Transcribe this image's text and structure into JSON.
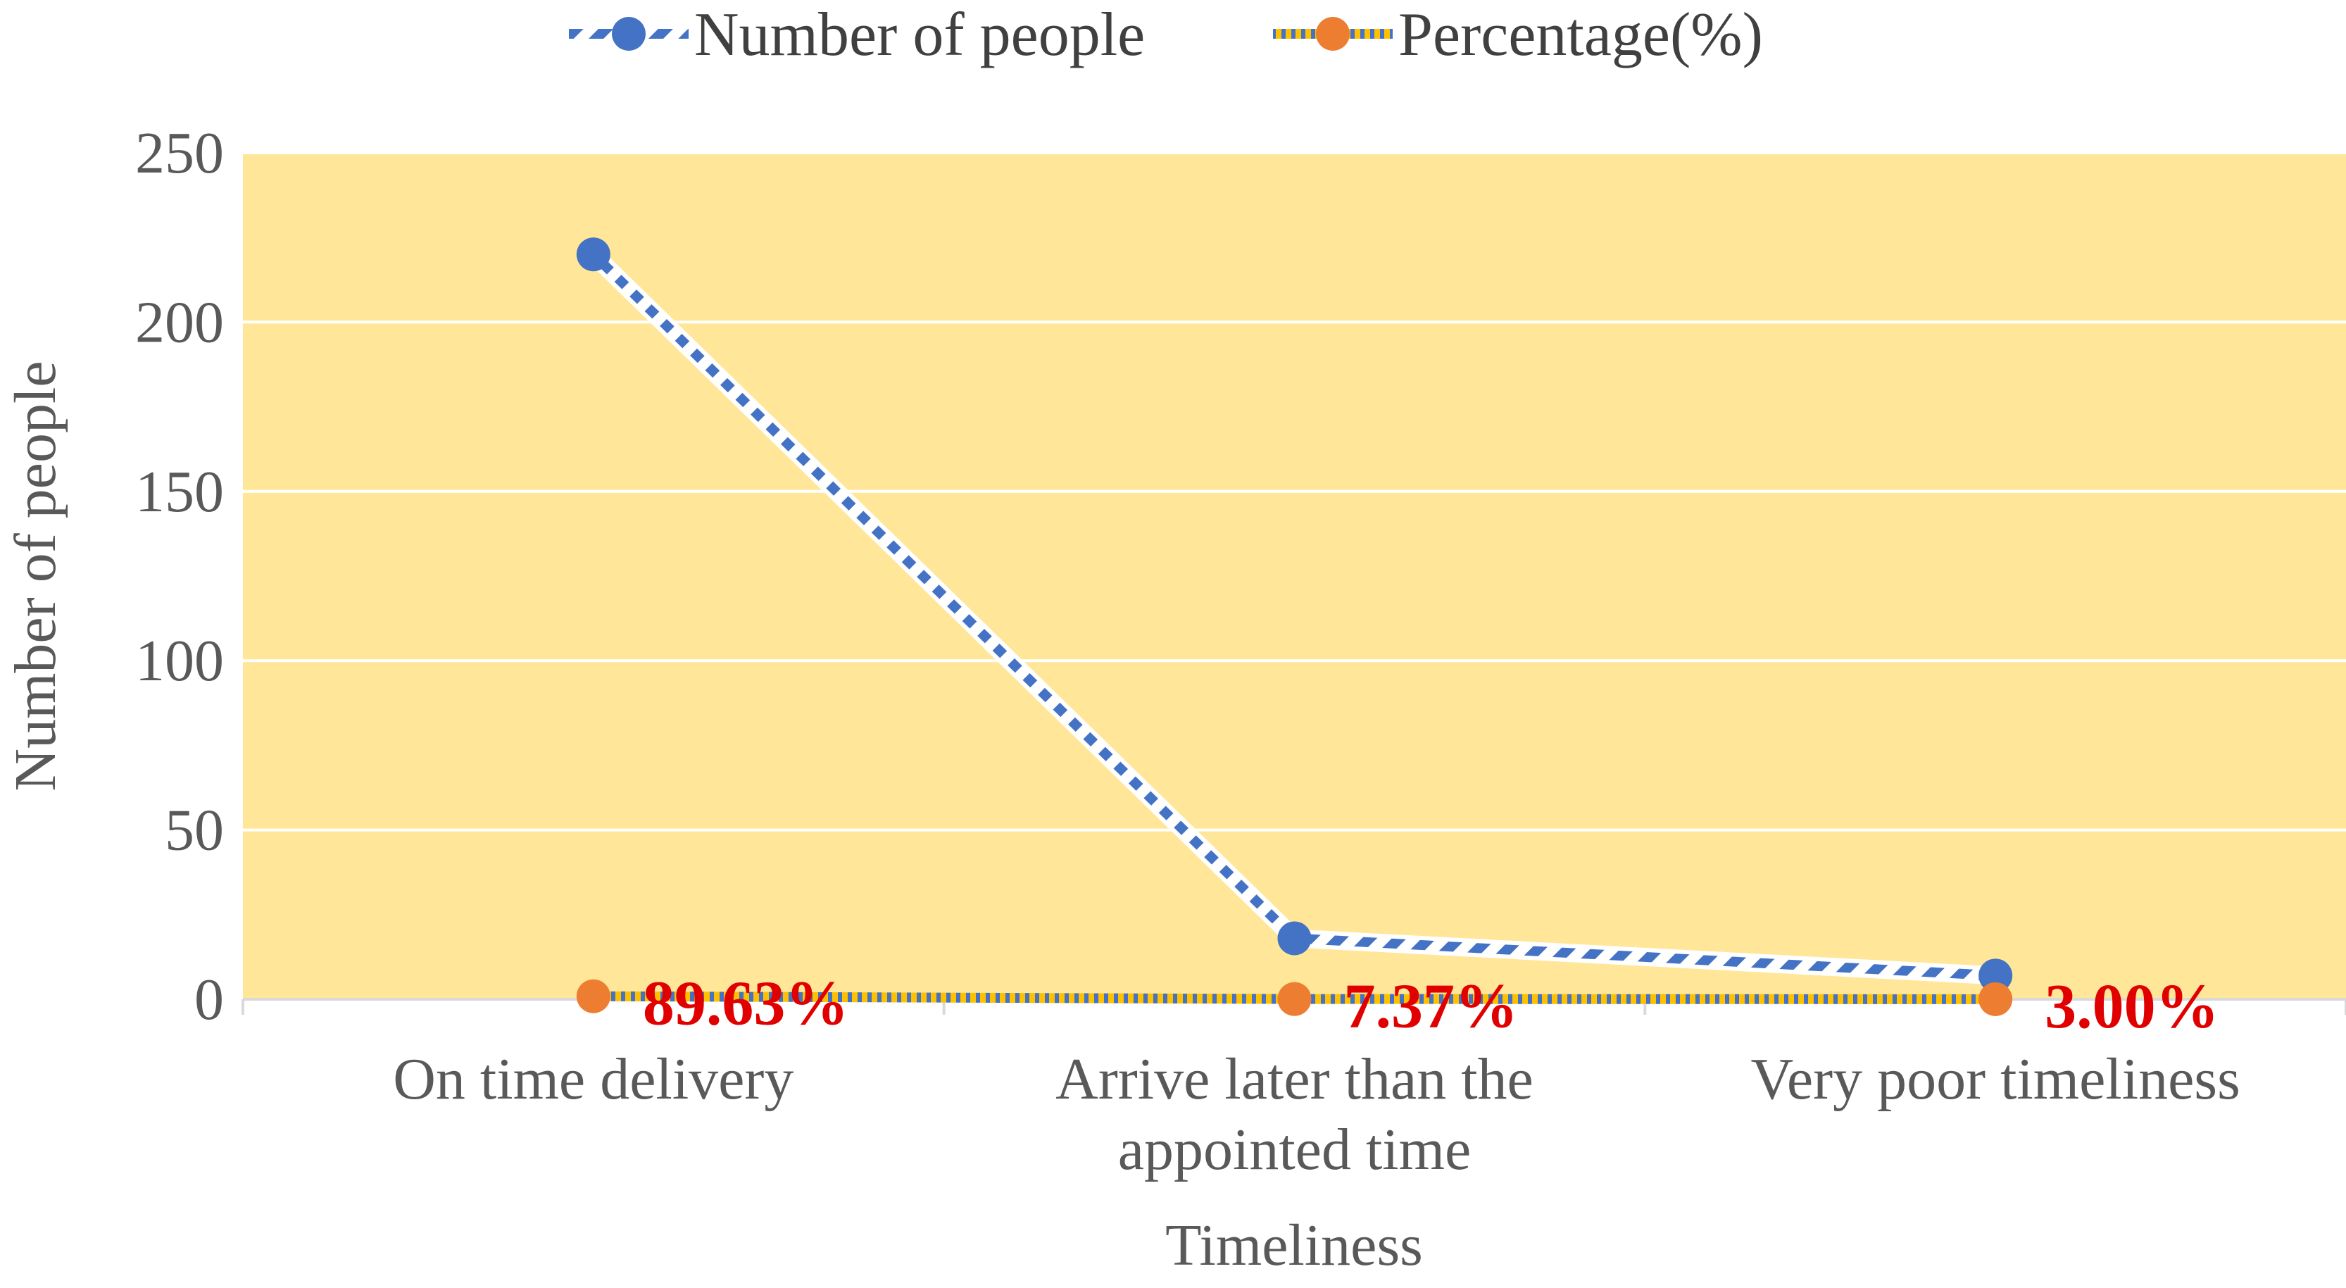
{
  "chart_data": {
    "type": "line",
    "categories": [
      "On time delivery",
      "Arrive later than the appointed time",
      "Very poor timeliness"
    ],
    "category_lines": [
      [
        "On time delivery"
      ],
      [
        "Arrive later than the",
        "appointed time"
      ],
      [
        "Very poor timeliness"
      ]
    ],
    "series": [
      {
        "name": "Number of people",
        "values": [
          220,
          18,
          7
        ],
        "color": "#4472c4"
      },
      {
        "name": "Percentage(%)",
        "values": [
          89.63,
          7.37,
          3.0
        ],
        "color": "#ed7d31"
      }
    ],
    "data_labels": [
      "89.63%",
      "7.37%",
      "3.00%"
    ],
    "xlabel": "Timeliness",
    "ylabel": "Number of people",
    "ylim": [
      0,
      250
    ],
    "yticks": [
      0,
      50,
      100,
      150,
      200,
      250
    ],
    "grid": true,
    "legend_position": "top",
    "plot_background": "#ffe699",
    "label_color": "#e00000"
  }
}
